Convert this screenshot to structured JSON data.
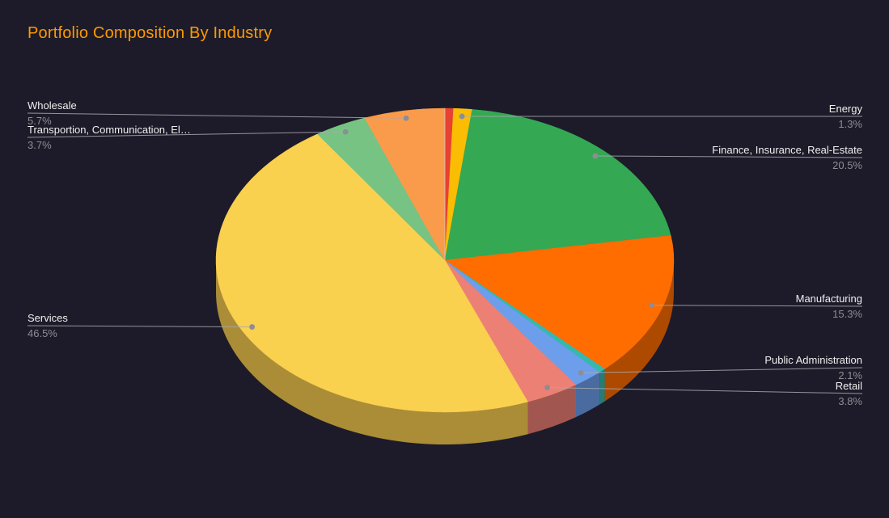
{
  "title": "Portfolio Composition By Industry",
  "colors": {
    "background": "#1d1b29",
    "title": "#ff9900",
    "label_text": "#efefef",
    "pct_text": "#8d8d95",
    "leader_line": "#a9a9b1",
    "leader_dot": "#8d8d95",
    "top_boundary_line": "#c9c9d2"
  },
  "chart_data": {
    "type": "pie",
    "is3d": true,
    "title": "Portfolio Composition By Industry",
    "legend_position": "labeled",
    "start_angle_deg": 0,
    "total": 100.0,
    "slices": [
      {
        "label": "",
        "pct_label": "",
        "value": 0.6,
        "color": "#e74133",
        "unlabeled": true,
        "estimated": true
      },
      {
        "label": "Energy",
        "pct_label": "1.3%",
        "value": 1.3,
        "color": "#fbbc04"
      },
      {
        "label": "Finance, Insurance, Real-Estate",
        "pct_label": "20.5%",
        "value": 20.5,
        "color": "#34a853"
      },
      {
        "label": "Manufacturing",
        "pct_label": "15.3%",
        "value": 15.3,
        "color": "#ff6d00"
      },
      {
        "label": "",
        "pct_label": "",
        "value": 0.5,
        "color": "#36b8ae",
        "unlabeled": true,
        "estimated": true
      },
      {
        "label": "Public Administration",
        "pct_label": "2.1%",
        "value": 2.1,
        "color": "#6d9eeb"
      },
      {
        "label": "Retail",
        "pct_label": "3.8%",
        "value": 3.8,
        "color": "#ed8074"
      },
      {
        "label": "Services",
        "pct_label": "46.5%",
        "value": 46.5,
        "color": "#fad04f"
      },
      {
        "label": "Transportion, Communication, El…",
        "pct_label": "3.7%",
        "value": 3.7,
        "color": "#77c383"
      },
      {
        "label": "Wholesale",
        "pct_label": "5.7%",
        "value": 5.7,
        "color": "#fa9b4b"
      }
    ]
  }
}
